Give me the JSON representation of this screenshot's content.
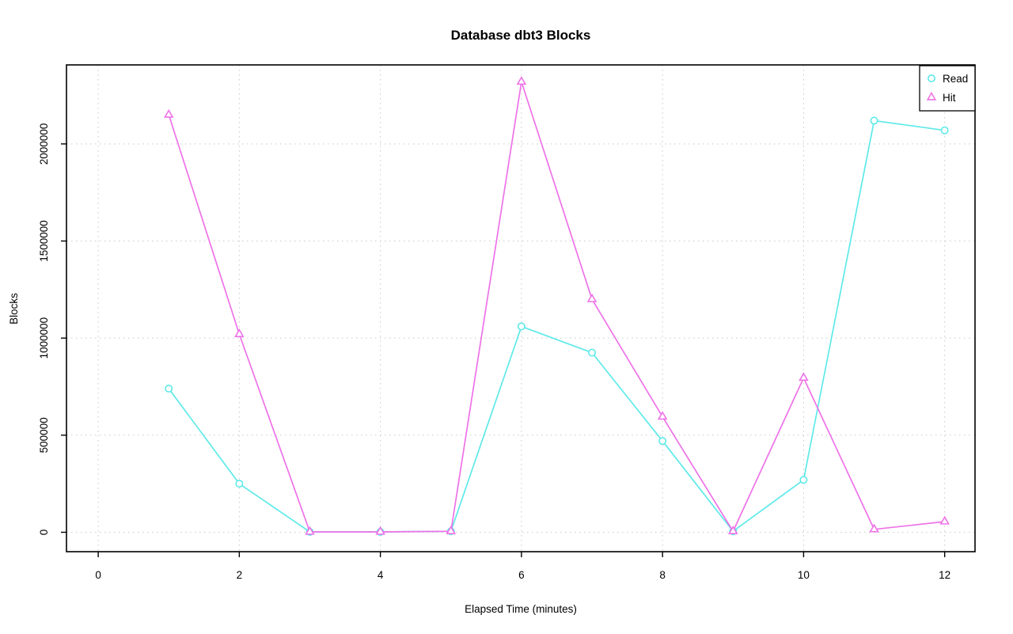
{
  "title": "Database dbt3 Blocks",
  "chart_data": {
    "type": "line",
    "title": "Database dbt3 Blocks",
    "xlabel": "Elapsed Time (minutes)",
    "ylabel": "Blocks",
    "x": [
      1,
      2,
      3,
      4,
      5,
      6,
      7,
      8,
      9,
      10,
      11,
      12
    ],
    "series": [
      {
        "name": "Read",
        "marker": "circle",
        "color": "#5FE9E9",
        "values": [
          740000,
          250000,
          2000,
          2000,
          5000,
          1060000,
          925000,
          470000,
          5000,
          270000,
          2120000,
          2070000
        ]
      },
      {
        "name": "Hit",
        "marker": "triangle",
        "color": "#EE72E8",
        "values": [
          2150000,
          1020000,
          2000,
          2000,
          5000,
          2320000,
          1200000,
          595000,
          5000,
          795000,
          15000,
          55000
        ]
      }
    ],
    "x_ticks": [
      0,
      2,
      4,
      6,
      8,
      10,
      12
    ],
    "y_ticks": [
      0,
      500000,
      1000000,
      1500000,
      2000000
    ],
    "y_tick_labels": [
      "0",
      "500000",
      "1000000",
      "1500000",
      "2000000"
    ],
    "xlim": [
      -0.45,
      12.43
    ],
    "ylim": [
      -100000,
      2407000
    ],
    "grid": "dotted",
    "grid_color": "#C8C8C8",
    "axis_color": "#000000",
    "background": "#FFFFFF",
    "legend_position": "top-right"
  },
  "legend": {
    "items": [
      {
        "label": "Read"
      },
      {
        "label": "Hit"
      }
    ]
  }
}
